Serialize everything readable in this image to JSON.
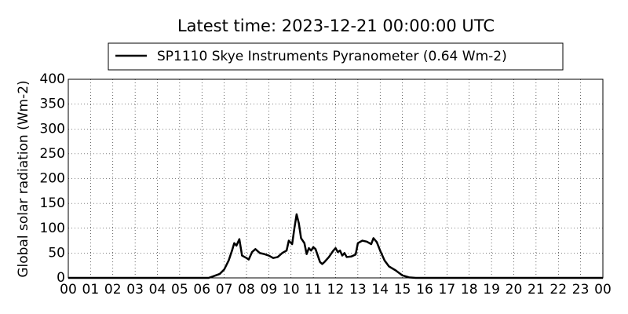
{
  "chart_data": {
    "type": "line",
    "title": "Latest time: 2023-12-21 00:00:00 UTC",
    "y_label": "Global solar radiation (Wm-2)",
    "x": [
      0,
      6.3,
      6.5,
      6.8,
      7.0,
      7.2,
      7.35,
      7.45,
      7.55,
      7.68,
      7.8,
      8.0,
      8.1,
      8.25,
      8.4,
      8.6,
      8.8,
      9.0,
      9.2,
      9.4,
      9.6,
      9.8,
      9.9,
      10.05,
      10.15,
      10.25,
      10.35,
      10.45,
      10.6,
      10.7,
      10.8,
      10.9,
      11.0,
      11.1,
      11.2,
      11.3,
      11.4,
      11.5,
      11.7,
      11.9,
      12.0,
      12.1,
      12.2,
      12.3,
      12.4,
      12.5,
      12.7,
      12.9,
      13.0,
      13.2,
      13.4,
      13.6,
      13.7,
      13.85,
      14.0,
      14.2,
      14.4,
      14.7,
      15.0,
      15.3,
      15.6,
      24
    ],
    "series": [
      {
        "name": "SP1110 Skye Instruments Pyranometer (0.64 Wm-2)",
        "color": "#000000",
        "values": [
          0,
          0,
          3,
          8,
          17,
          35,
          55,
          70,
          65,
          78,
          45,
          40,
          37,
          52,
          58,
          50,
          48,
          45,
          40,
          42,
          50,
          55,
          75,
          68,
          100,
          128,
          110,
          80,
          70,
          48,
          60,
          55,
          62,
          58,
          45,
          32,
          28,
          32,
          42,
          55,
          60,
          52,
          55,
          45,
          50,
          42,
          43,
          47,
          70,
          75,
          73,
          68,
          80,
          72,
          55,
          35,
          23,
          15,
          5,
          1,
          0,
          0
        ]
      }
    ],
    "xlim": [
      0,
      24
    ],
    "xticks": [
      {
        "value": 0,
        "label": "00"
      },
      {
        "value": 1,
        "label": "01"
      },
      {
        "value": 2,
        "label": "02"
      },
      {
        "value": 3,
        "label": "03"
      },
      {
        "value": 4,
        "label": "04"
      },
      {
        "value": 5,
        "label": "05"
      },
      {
        "value": 6,
        "label": "06"
      },
      {
        "value": 7,
        "label": "07"
      },
      {
        "value": 8,
        "label": "08"
      },
      {
        "value": 9,
        "label": "09"
      },
      10,
      11,
      12,
      13,
      14,
      15,
      16,
      17,
      18,
      19,
      20,
      21,
      22,
      23,
      {
        "value": 24,
        "label": "00"
      }
    ],
    "ylim": [
      0,
      400
    ],
    "yticks": [
      0,
      50,
      100,
      150,
      200,
      250,
      300,
      350,
      400
    ],
    "grid": true
  }
}
